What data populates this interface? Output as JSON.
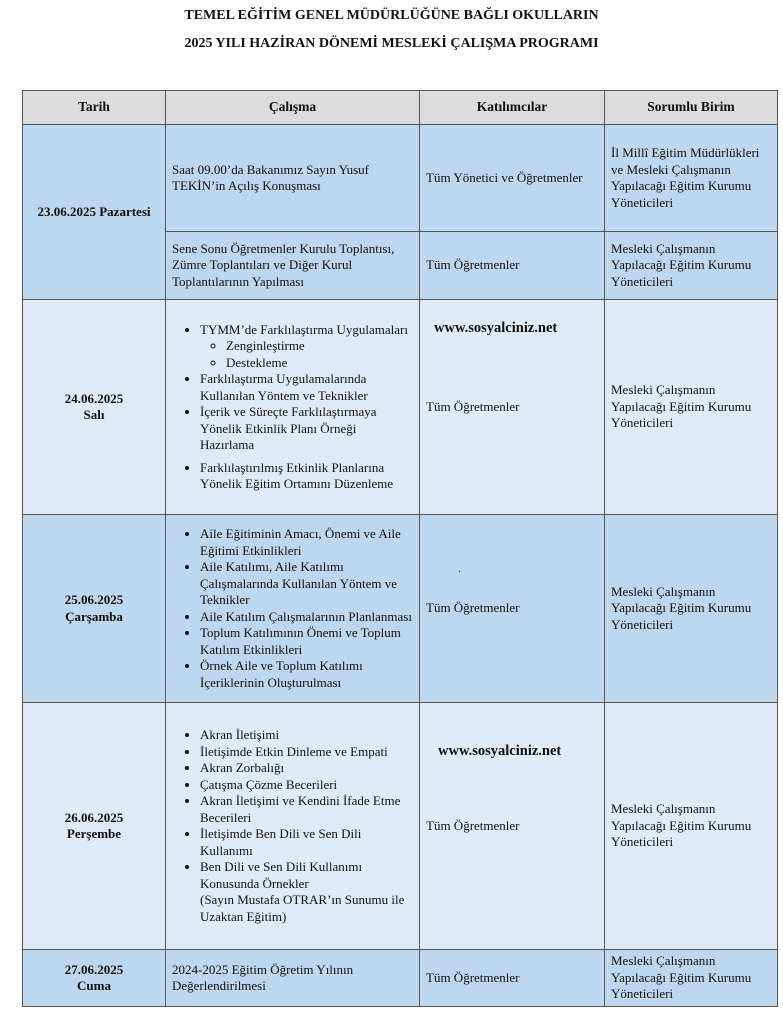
{
  "title": {
    "line1": "TEMEL EĞİTİM GENEL MÜDÜRLÜĞÜNE BAĞLI OKULLARIN",
    "line2": "2025 YILI HAZİRAN DÖNEMİ MESLEKİ ÇALIŞMA PROGRAMI"
  },
  "headers": [
    "Tarih",
    "Çalışma",
    "Katılımcılar",
    "Sorumlu Birim"
  ],
  "watermark": "www.sosyalciniz.net",
  "colors": {
    "header": "#dcdcdc",
    "dark_row": "#bdd7ee",
    "light_row": "#deebf7"
  },
  "rows": [
    {
      "date": "23.06.2025 Pazartesi",
      "work": "Saat 09.00’da Bakanımız Sayın Yusuf TEKİN’in Açılış Konuşması",
      "participants": "Tüm Yönetici ve Öğretmenler",
      "responsible": "İl Millî Eğitim Müdürlükleri ve Mesleki Çalışmanın Yapılacağı Eğitim Kurumu Yöneticileri"
    },
    {
      "work": "Sene Sonu Öğretmenler Kurulu Toplantısı, Zümre Toplantıları ve Diğer Kurul Toplantılarının Yapılması",
      "participants": "Tüm Öğretmenler",
      "responsible": "Mesleki Çalışmanın Yapılacağı Eğitim Kurumu Yöneticileri"
    },
    {
      "date": "24.06.2025",
      "day": "Salı",
      "items": [
        "TYMM’de Farklılaştırma Uygulamaları",
        "Farklılaştırma Uygulamalarında Kullanılan Yöntem ve Teknikler",
        "İçerik ve Süreçte Farklılaştırmaya Yönelik Etkinlik Planı Örneği Hazırlama",
        "Farklılaştırılmış Etkinlik Planlarına Yönelik Eğitim Ortamını Düzenleme"
      ],
      "subitems": [
        "Zenginleştirme",
        "Destekleme"
      ],
      "participants": "Tüm Öğretmenler",
      "responsible": "Mesleki Çalışmanın Yapılacağı Eğitim Kurumu Yöneticileri"
    },
    {
      "date": "25.06.2025",
      "day": "Çarşamba",
      "items": [
        "Aile Eğitiminin Amacı, Önemi ve Aile Eğitimi Etkinlikleri",
        "Aile Katılımı, Aile Katılımı Çalışmalarında Kullanılan Yöntem ve Teknikler",
        "Aile Katılım Çalışmalarının Planlanması",
        "Toplum Katılımının Önemi ve Toplum Katılım Etkinlikleri",
        "Örnek Aile ve Toplum Katılımı İçeriklerinin Oluşturulması"
      ],
      "participants": "Tüm Öğretmenler",
      "dot": "·",
      "responsible": "Mesleki Çalışmanın Yapılacağı Eğitim Kurumu Yöneticileri"
    },
    {
      "date": "26.06.2025",
      "day": "Perşembe",
      "items": [
        "Akran İletişimi",
        "İletişimde Etkin Dinleme ve Empati",
        "Akran Zorbalığı",
        "Çatışma Çözme Becerileri",
        "Akran İletişimi ve Kendini İfade Etme Becerileri",
        "İletişimde Ben Dili ve Sen Dili Kullanımı",
        "Ben Dili ve Sen Dili Kullanımı Konusunda Örnekler"
      ],
      "note": "(Sayın Mustafa OTRAR’ın Sunumu ile Uzaktan Eğitim)",
      "participants": "Tüm Öğretmenler",
      "responsible": "Mesleki Çalışmanın Yapılacağı Eğitim Kurumu Yöneticileri"
    },
    {
      "date": "27.06.2025",
      "day": "Cuma",
      "work": "2024-2025 Eğitim Öğretim Yılının Değerlendirilmesi",
      "participants": "Tüm Öğretmenler",
      "responsible": "Mesleki Çalışmanın Yapılacağı Eğitim Kurumu Yöneticileri"
    }
  ]
}
